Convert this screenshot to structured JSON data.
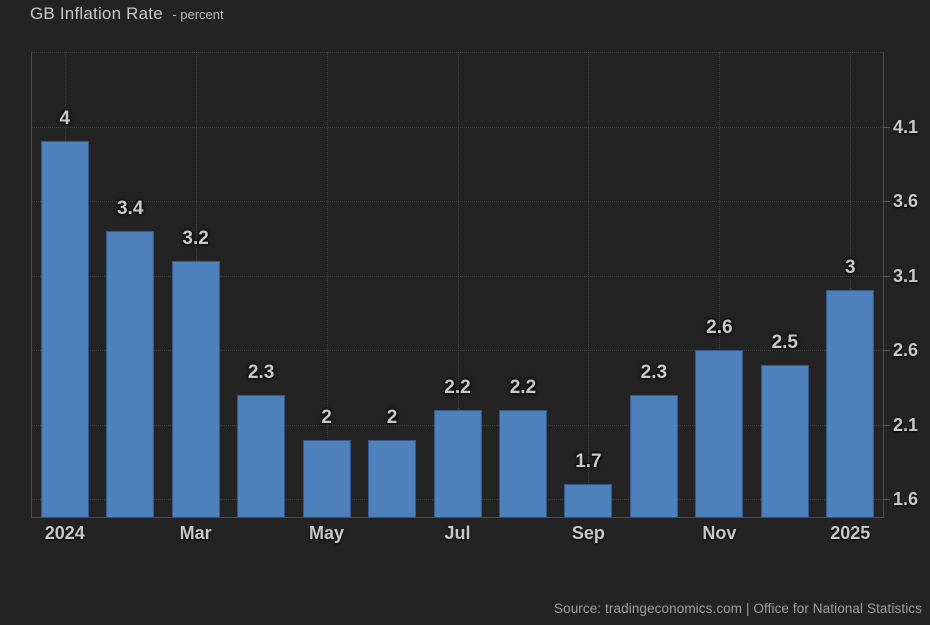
{
  "header": {
    "title": "GB Inflation Rate",
    "subtitle": "- percent"
  },
  "footer": {
    "source": "Source: tradingeconomics.com | Office for National Statistics"
  },
  "chart_data": {
    "type": "bar",
    "title": "GB Inflation Rate - percent",
    "values": [
      4,
      3.4,
      3.2,
      2.3,
      2,
      2,
      2.2,
      2.2,
      1.7,
      2.3,
      2.6,
      2.5,
      3
    ],
    "data_labels": [
      "4",
      "3.4",
      "3.2",
      "2.3",
      "2",
      "2",
      "2.2",
      "2.2",
      "1.7",
      "2.3",
      "2.6",
      "2.5",
      "3"
    ],
    "x_labels": [
      "2024",
      "",
      "Mar",
      "",
      "May",
      "",
      "Jul",
      "",
      "Sep",
      "",
      "Nov",
      "",
      "2025"
    ],
    "y_ticks": [
      1.6,
      2.1,
      2.6,
      3.1,
      3.6,
      4.1
    ],
    "y_tick_labels": [
      "1.6",
      "2.1",
      "2.6",
      "3.1",
      "3.6",
      "4.1"
    ],
    "ylim": [
      1.48,
      4.6
    ],
    "xlabel": "",
    "ylabel": "percent",
    "grid": "dotted",
    "legend": "none",
    "colors": {
      "bar": "#4e81bc",
      "bar_border": "#35598a",
      "background": "#232323",
      "grid": "#434343",
      "axis": "#4d4d4d",
      "text": "#c9c9c9",
      "source_text": "#9e9e9e"
    }
  }
}
